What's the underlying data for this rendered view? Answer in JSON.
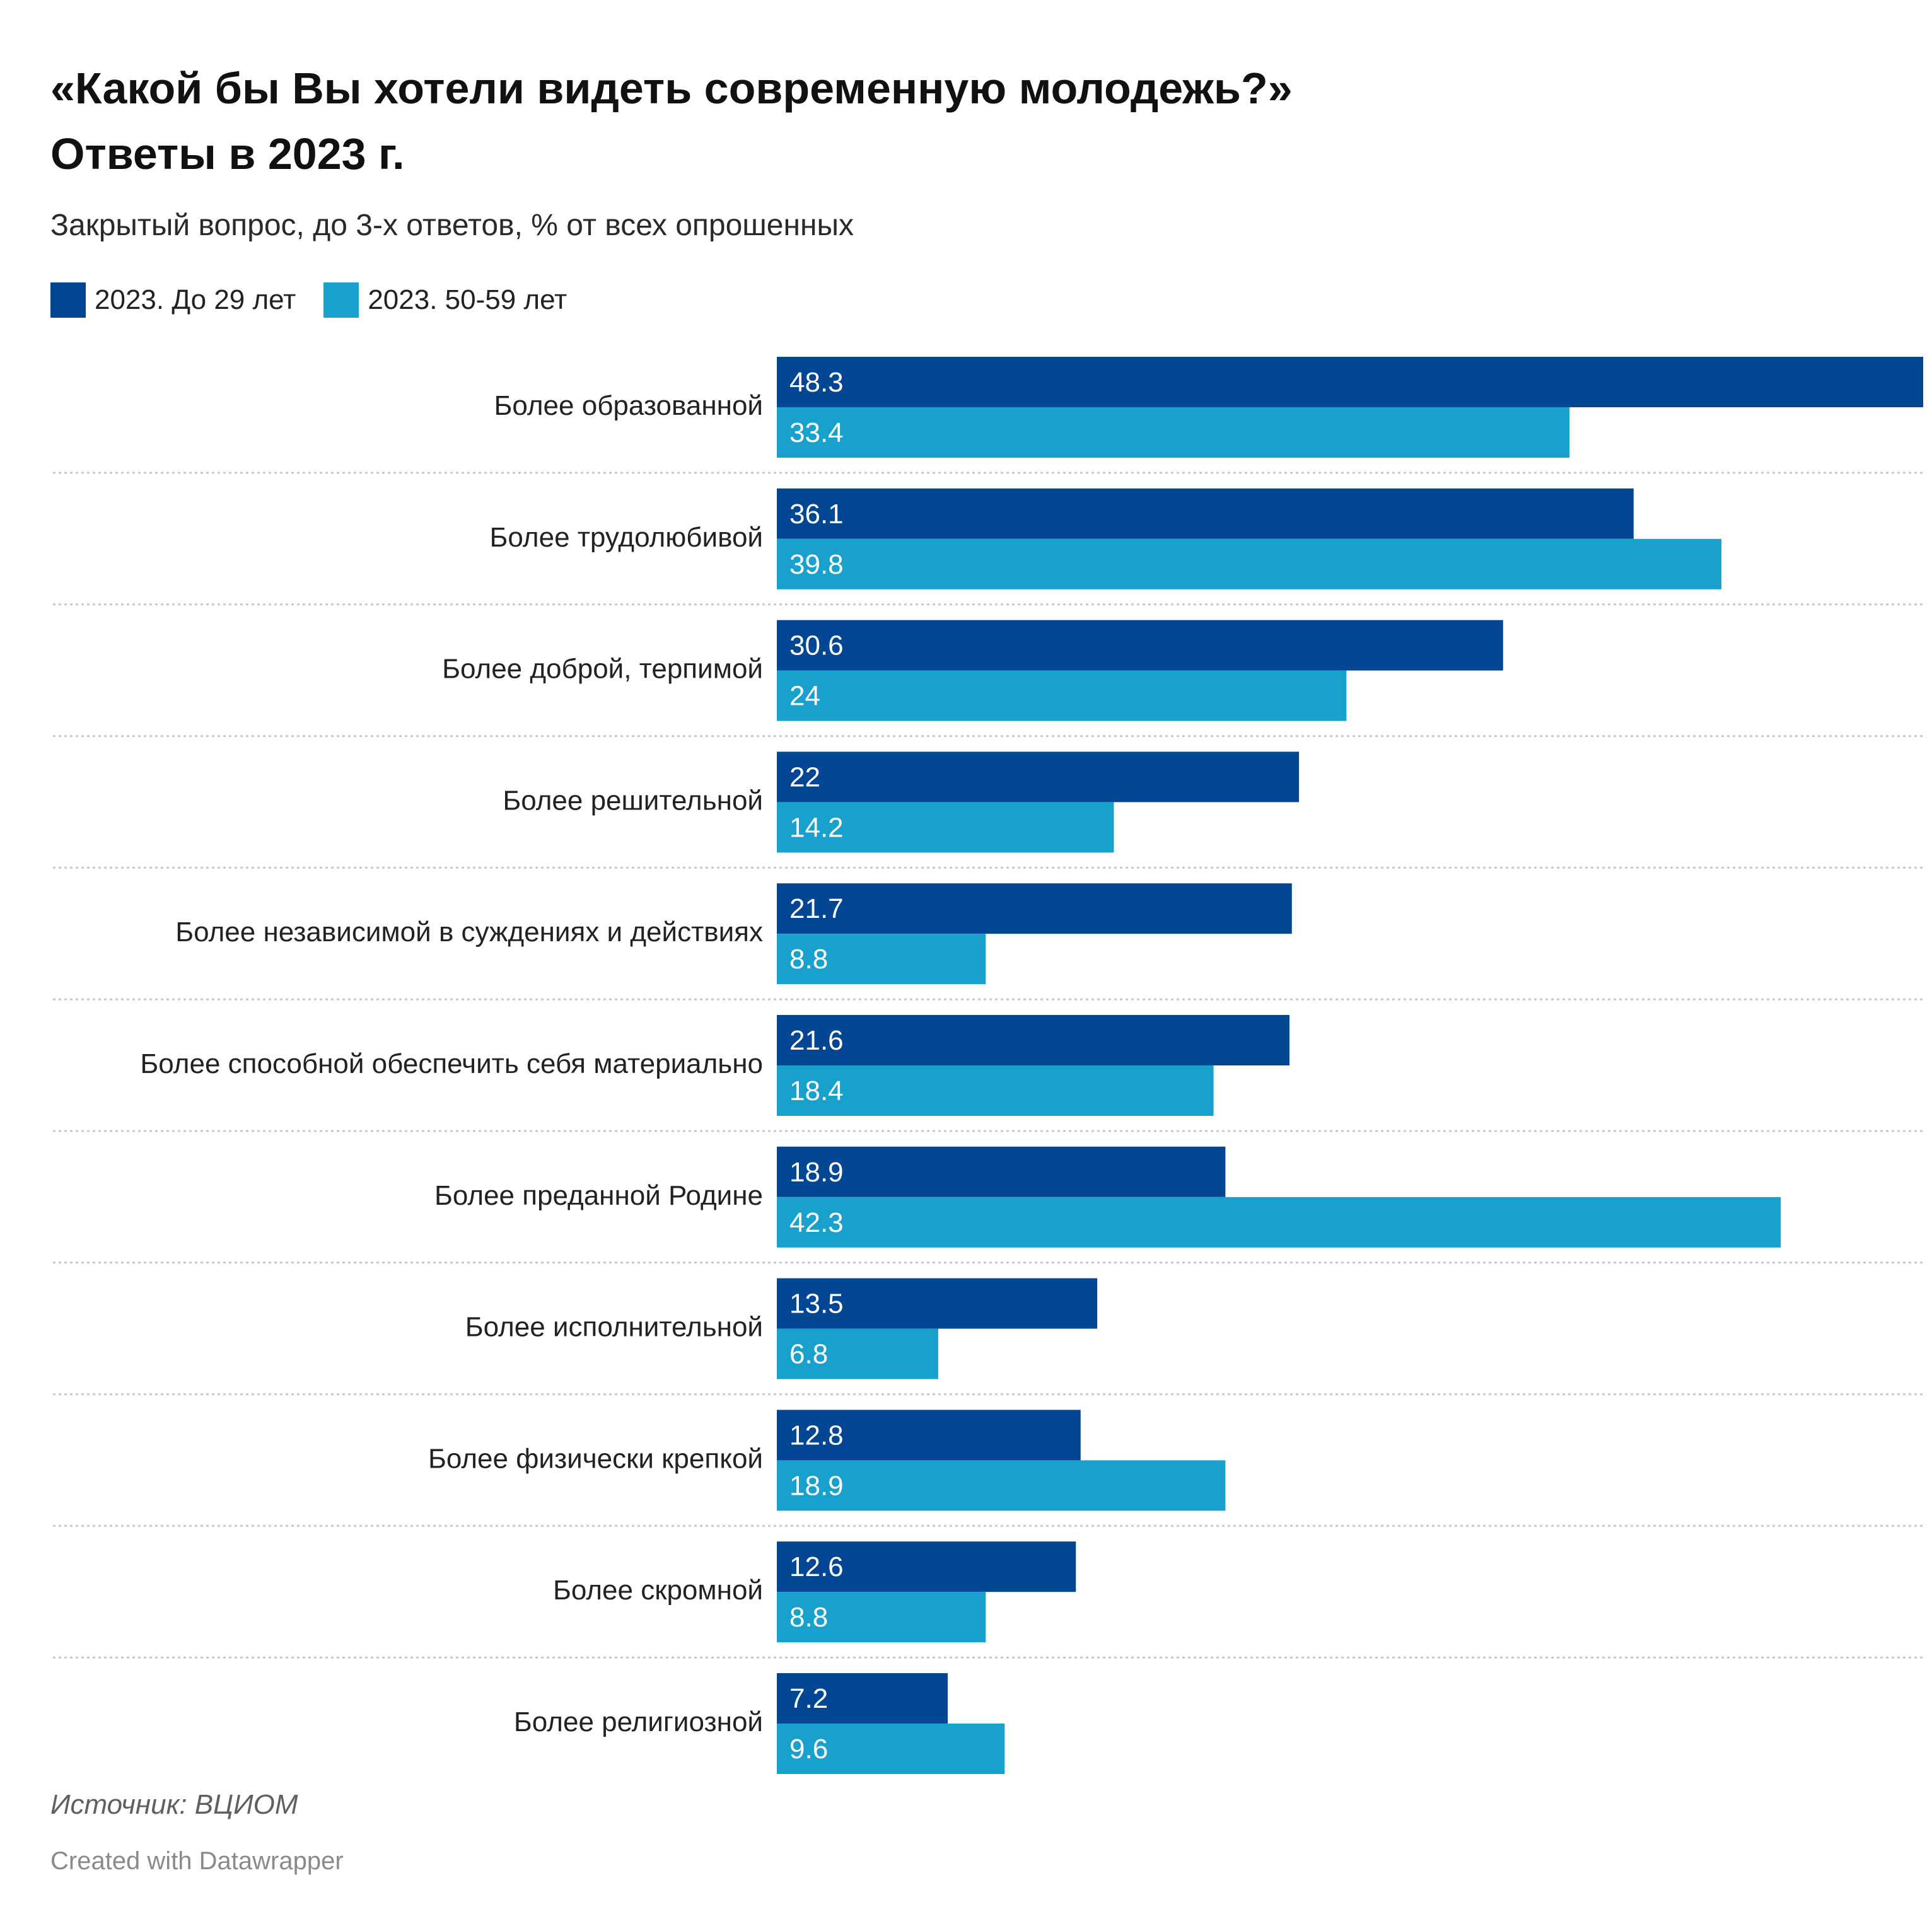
{
  "title_lines": [
    "«Какой бы Вы хотели видеть современную молодежь?»",
    "Ответы в 2023 г."
  ],
  "subtitle": "Закрытый вопрос, до 3-х ответов, % от всех опрошенных",
  "notes": "Источник: ВЦИОМ",
  "credit": "Created with Datawrapper",
  "colors": {
    "series_0": "#034694",
    "series_1": "#18a1cd",
    "value_label": "#ffffff",
    "separator": "#c8c8c8"
  },
  "chart_data": {
    "type": "bar",
    "orientation": "horizontal",
    "grouped": true,
    "title": "«Какой бы Вы хотели видеть современную молодежь?» Ответы в 2023 г.",
    "subtitle": "Закрытый вопрос, до 3-х ответов, % от всех опрошенных",
    "xlim": [
      0,
      48.3
    ],
    "grid": false,
    "legend_position": "top-left",
    "categories": [
      "Более образованной",
      "Более трудолюбивой",
      "Более доброй, терпимой",
      "Более решительной",
      "Более независимой в суждениях и действиях",
      "Более способной обеспечить себя материально",
      "Более преданной Родине",
      "Более исполнительной",
      "Более физически крепкой",
      "Более скромной",
      "Более религиозной"
    ],
    "series": [
      {
        "name": "2023. До 29 лет",
        "values": [
          48.3,
          36.1,
          30.6,
          22,
          21.7,
          21.6,
          18.9,
          13.5,
          12.8,
          12.6,
          7.2
        ]
      },
      {
        "name": "2023. 50-59 лет",
        "values": [
          33.4,
          39.8,
          24,
          14.2,
          8.8,
          18.4,
          42.3,
          6.8,
          18.9,
          8.8,
          9.6
        ]
      }
    ]
  }
}
